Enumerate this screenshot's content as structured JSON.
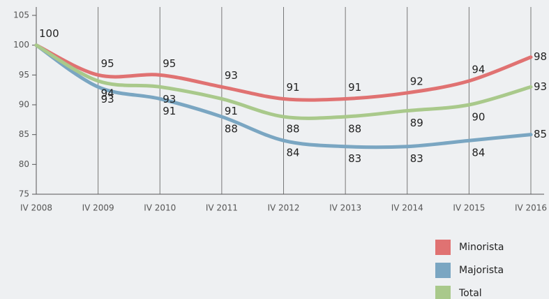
{
  "chart_data": {
    "type": "line",
    "categories": [
      "IV 2008",
      "IV 2009",
      "IV 2010",
      "IV 2011",
      "IV 2012",
      "IV 2013",
      "IV 2014",
      "IV 2015",
      "IV 2016"
    ],
    "series": [
      {
        "name": "Minorista",
        "color": "#e07272",
        "values": [
          100,
          95,
          95,
          93,
          91,
          91,
          92,
          94,
          98
        ]
      },
      {
        "name": "Majorista",
        "color": "#7aa6c2",
        "values": [
          100,
          93,
          91,
          88,
          84,
          83,
          83,
          84,
          85
        ]
      },
      {
        "name": "Total",
        "color": "#a9c98b",
        "values": [
          100,
          94,
          93,
          91,
          88,
          88,
          89,
          90,
          93
        ]
      }
    ],
    "ylim": [
      75,
      105
    ],
    "yticks": [
      75,
      80,
      85,
      90,
      95,
      100,
      105
    ],
    "grid": true,
    "legend": "bottom-right"
  }
}
